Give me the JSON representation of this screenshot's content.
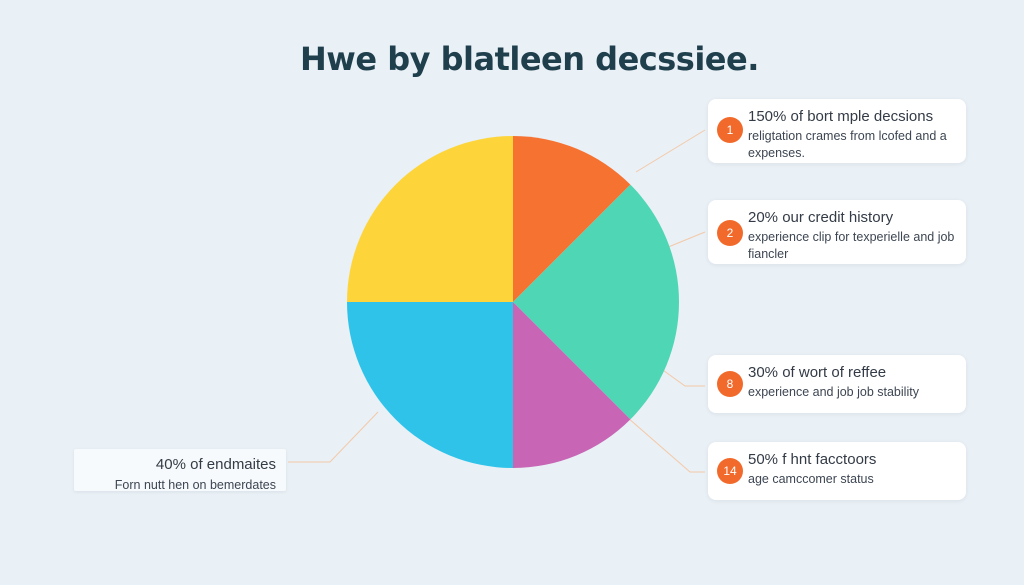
{
  "title": "Hwe by blatleen decssiee.",
  "chart_data": {
    "type": "pie",
    "title": "Hwe by blatleen decssiee.",
    "start_angle_deg": 0,
    "direction": "clockwise",
    "slices": [
      {
        "value": 12.5,
        "color": "#f67230"
      },
      {
        "value": 25,
        "color": "#4fd6b4"
      },
      {
        "value": 12.5,
        "color": "#c865b5"
      },
      {
        "value": 25,
        "color": "#2fc3ea"
      },
      {
        "value": 25,
        "color": "#fdd53b"
      }
    ]
  },
  "callouts": [
    {
      "badge": "1",
      "title": "150% of bort mple decsions",
      "text": "religtation crames from lcofed and a expenses."
    },
    {
      "badge": "2",
      "title": "20% our credit history",
      "text": "experience clip for texperielle and job fiancler"
    },
    {
      "badge": "8",
      "title": "30% of wort of reffee",
      "text": "experience and job job stability"
    },
    {
      "badge": "14",
      "title": "50% f hnt facctoors",
      "text": "age camccomer status"
    }
  ],
  "left_callout": {
    "title": "40% of endmaites",
    "text": "Forn nutt hen on bemerdates"
  },
  "colors": {
    "background": "#e9f0f6",
    "badge": "#f26a2b",
    "title": "#1f3f4d",
    "leader_line": "#f4c9a8"
  }
}
